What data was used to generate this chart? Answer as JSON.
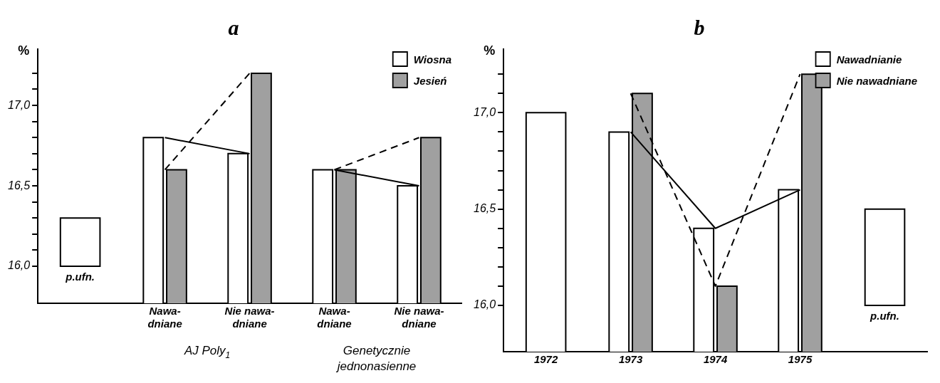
{
  "chart_data": [
    {
      "type": "bar",
      "title": "a",
      "ylabel": "%",
      "categories": [
        null,
        "Nawa-\ndniane",
        "Nie nawa-\ndniane",
        "Nawa-\ndniane",
        "Nie nawa-\ndniane"
      ],
      "series": [
        {
          "name": "Wiosna",
          "color": "#ffffff",
          "values": [
            null,
            16.8,
            16.7,
            16.6,
            16.5
          ]
        },
        {
          "name": "Jesień",
          "color": "#a0a0a0",
          "values": [
            null,
            16.6,
            17.2,
            16.6,
            16.8
          ]
        },
        {
          "name": "p.ufn.",
          "color": "#ffffff",
          "values": [
            0.3,
            null,
            null,
            null,
            null
          ],
          "base": [
            16.0,
            null,
            null,
            null,
            null
          ]
        },
        {
          "type": "line",
          "color": "#000000",
          "line_style": "solid",
          "values": [
            null,
            16.8,
            16.7,
            null,
            null
          ]
        },
        {
          "type": "line",
          "color": "#000000",
          "line_style": "dashed",
          "values": [
            null,
            16.6,
            17.2,
            null,
            null
          ]
        },
        {
          "type": "line",
          "color": "#000000",
          "line_style": "solid",
          "values": [
            null,
            null,
            null,
            16.6,
            16.5
          ]
        },
        {
          "type": "line",
          "color": "#000000",
          "line_style": "dashed",
          "values": [
            null,
            null,
            null,
            16.6,
            16.8
          ]
        }
      ],
      "ylim": [
        15.77,
        17.35
      ],
      "yticks": [
        {
          "value": 16.0,
          "label": "16,0"
        },
        {
          "value": 16.1,
          "label": null
        },
        {
          "value": 16.2,
          "label": null
        },
        {
          "value": 16.3,
          "label": null
        },
        {
          "value": 16.4,
          "label": null
        },
        {
          "value": 16.5,
          "label": "16,5"
        },
        {
          "value": 16.6,
          "label": null
        },
        {
          "value": 16.7,
          "label": null
        },
        {
          "value": 16.8,
          "label": null
        },
        {
          "value": 16.9,
          "label": null
        },
        {
          "value": 17.0,
          "label": "17,0"
        },
        {
          "value": 17.1,
          "label": null
        },
        {
          "value": 17.2,
          "label": null
        }
      ],
      "annotations": [
        "AJ Poly$_{1}$",
        "Genetycznie\njednonasienne"
      ],
      "legend": "top right",
      "marker": "none"
    },
    {
      "type": "bar",
      "title": "b",
      "ylabel": "%",
      "categories": [
        "1972",
        "1973",
        "1974",
        "1975",
        null
      ],
      "series": [
        {
          "name": "Nawadnianie",
          "color": "#ffffff",
          "values": [
            17.0,
            16.9,
            16.4,
            16.6,
            null
          ]
        },
        {
          "name": "Nie nawadniane",
          "color": "#a0a0a0",
          "values": [
            null,
            17.1,
            16.1,
            17.2,
            null
          ]
        },
        {
          "name": "p.ufn.",
          "color": "#ffffff",
          "values": [
            null,
            null,
            null,
            null,
            0.5
          ],
          "base": [
            null,
            null,
            null,
            null,
            16.0
          ]
        },
        {
          "type": "line",
          "color": "#000000",
          "line_style": "solid",
          "values": [
            null,
            16.9,
            16.4,
            16.6,
            null
          ]
        },
        {
          "type": "line",
          "color": "#000000",
          "line_style": "dashed",
          "values": [
            null,
            17.1,
            16.1,
            17.2,
            null
          ]
        }
      ],
      "ylim": [
        15.76,
        17.33
      ],
      "yticks": [
        {
          "value": 16.0,
          "label": "16,0"
        },
        {
          "value": 16.1,
          "label": null
        },
        {
          "value": 16.2,
          "label": null
        },
        {
          "value": 16.3,
          "label": null
        },
        {
          "value": 16.4,
          "label": null
        },
        {
          "value": 16.5,
          "label": "16,5"
        },
        {
          "value": 16.6,
          "label": null
        },
        {
          "value": 16.7,
          "label": null
        },
        {
          "value": 16.8,
          "label": null
        },
        {
          "value": 16.9,
          "label": null
        },
        {
          "value": 17.0,
          "label": "17,0"
        },
        {
          "value": 17.1,
          "label": null
        },
        {
          "value": 17.2,
          "label": null
        }
      ],
      "legend": "top right",
      "marker": "none"
    }
  ]
}
